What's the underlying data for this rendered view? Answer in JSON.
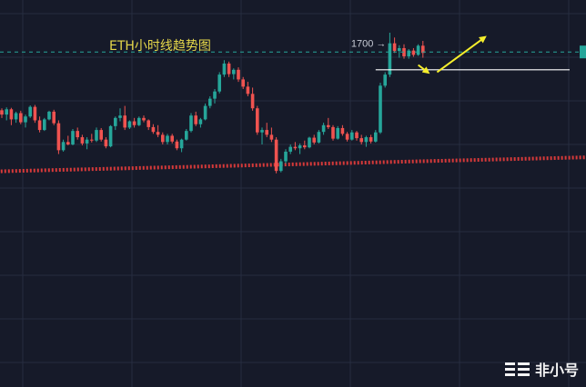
{
  "chart_data": {
    "type": "candlestick",
    "title": "ETH小时线趋势图",
    "grid": true,
    "price_marker": {
      "label": "1700 →",
      "value": 1700
    },
    "colors": {
      "background": "#161a29",
      "grid": "#262c3f",
      "up": "#26a69a",
      "down": "#ef5350",
      "title": "#e6d84a",
      "arrow": "#f5ee2c",
      "support": "#ffffff",
      "trendline": "#d83a3a",
      "current_price_line": "#26a69a"
    },
    "y_domain": [
      1290,
      1722
    ],
    "candles": [
      [
        1561,
        1565,
        1545,
        1552
      ],
      [
        1552,
        1567,
        1540,
        1563
      ],
      [
        1563,
        1566,
        1530,
        1542
      ],
      [
        1542,
        1558,
        1535,
        1555
      ],
      [
        1555,
        1560,
        1532,
        1536
      ],
      [
        1536,
        1552,
        1525,
        1548
      ],
      [
        1548,
        1571,
        1545,
        1568
      ],
      [
        1568,
        1572,
        1535,
        1540
      ],
      [
        1540,
        1548,
        1515,
        1520
      ],
      [
        1520,
        1545,
        1518,
        1542
      ],
      [
        1542,
        1560,
        1540,
        1558
      ],
      [
        1558,
        1562,
        1530,
        1534
      ],
      [
        1534,
        1540,
        1470,
        1478
      ],
      [
        1478,
        1500,
        1475,
        1495
      ],
      [
        1495,
        1508,
        1488,
        1490
      ],
      [
        1490,
        1522,
        1488,
        1518
      ],
      [
        1518,
        1525,
        1500,
        1505
      ],
      [
        1505,
        1510,
        1488,
        1492
      ],
      [
        1492,
        1505,
        1480,
        1500
      ],
      [
        1500,
        1512,
        1494,
        1498
      ],
      [
        1498,
        1525,
        1495,
        1520
      ],
      [
        1520,
        1524,
        1496,
        1500
      ],
      [
        1500,
        1505,
        1482,
        1486
      ],
      [
        1486,
        1530,
        1484,
        1528
      ],
      [
        1528,
        1548,
        1520,
        1545
      ],
      [
        1545,
        1565,
        1538,
        1550
      ],
      [
        1550,
        1570,
        1520,
        1525
      ],
      [
        1525,
        1540,
        1522,
        1538
      ],
      [
        1538,
        1545,
        1525,
        1530
      ],
      [
        1530,
        1548,
        1528,
        1545
      ],
      [
        1545,
        1550,
        1536,
        1540
      ],
      [
        1540,
        1542,
        1520,
        1526
      ],
      [
        1526,
        1532,
        1512,
        1516
      ],
      [
        1516,
        1530,
        1505,
        1510
      ],
      [
        1510,
        1515,
        1490,
        1495
      ],
      [
        1495,
        1512,
        1490,
        1508
      ],
      [
        1508,
        1512,
        1492,
        1496
      ],
      [
        1496,
        1500,
        1478,
        1482
      ],
      [
        1482,
        1502,
        1474,
        1500
      ],
      [
        1500,
        1522,
        1498,
        1518
      ],
      [
        1518,
        1555,
        1515,
        1550
      ],
      [
        1550,
        1558,
        1528,
        1532
      ],
      [
        1532,
        1545,
        1525,
        1542
      ],
      [
        1542,
        1575,
        1540,
        1570
      ],
      [
        1570,
        1590,
        1565,
        1585
      ],
      [
        1585,
        1605,
        1575,
        1600
      ],
      [
        1600,
        1640,
        1596,
        1635
      ],
      [
        1635,
        1665,
        1630,
        1658
      ],
      [
        1658,
        1662,
        1630,
        1636
      ],
      [
        1636,
        1648,
        1625,
        1645
      ],
      [
        1645,
        1650,
        1620,
        1625
      ],
      [
        1625,
        1630,
        1605,
        1610
      ],
      [
        1610,
        1620,
        1590,
        1595
      ],
      [
        1595,
        1608,
        1560,
        1565
      ],
      [
        1565,
        1570,
        1510,
        1515
      ],
      [
        1515,
        1525,
        1490,
        1520
      ],
      [
        1520,
        1535,
        1505,
        1510
      ],
      [
        1510,
        1525,
        1495,
        1500
      ],
      [
        1500,
        1505,
        1430,
        1435
      ],
      [
        1435,
        1460,
        1432,
        1455
      ],
      [
        1455,
        1480,
        1450,
        1475
      ],
      [
        1475,
        1490,
        1470,
        1485
      ],
      [
        1485,
        1495,
        1478,
        1482
      ],
      [
        1482,
        1492,
        1470,
        1488
      ],
      [
        1488,
        1498,
        1480,
        1484
      ],
      [
        1484,
        1506,
        1482,
        1504
      ],
      [
        1504,
        1510,
        1490,
        1494
      ],
      [
        1494,
        1520,
        1492,
        1516
      ],
      [
        1516,
        1535,
        1510,
        1530
      ],
      [
        1530,
        1545,
        1522,
        1526
      ],
      [
        1526,
        1530,
        1498,
        1502
      ],
      [
        1502,
        1528,
        1500,
        1524
      ],
      [
        1524,
        1530,
        1508,
        1512
      ],
      [
        1512,
        1516,
        1496,
        1500
      ],
      [
        1500,
        1520,
        1498,
        1515
      ],
      [
        1515,
        1518,
        1498,
        1503
      ],
      [
        1503,
        1510,
        1490,
        1495
      ],
      [
        1495,
        1508,
        1485,
        1505
      ],
      [
        1505,
        1510,
        1492,
        1496
      ],
      [
        1496,
        1520,
        1494,
        1515
      ],
      [
        1515,
        1618,
        1512,
        1612
      ],
      [
        1612,
        1640,
        1608,
        1635
      ],
      [
        1635,
        1722,
        1630,
        1700
      ],
      [
        1700,
        1712,
        1680,
        1684
      ],
      [
        1684,
        1696,
        1670,
        1690
      ],
      [
        1690,
        1698,
        1668,
        1673
      ],
      [
        1673,
        1688,
        1668,
        1685
      ],
      [
        1685,
        1690,
        1672,
        1676
      ],
      [
        1676,
        1698,
        1674,
        1695
      ],
      [
        1695,
        1705,
        1670,
        1680
      ]
    ],
    "horizontal_lines": [
      {
        "kind": "current-price",
        "value": 1682,
        "style": "dashed"
      },
      {
        "kind": "support",
        "value": 1645,
        "style": "solid"
      }
    ],
    "trendline": {
      "from": {
        "index": -1,
        "value": 1434
      },
      "to": {
        "index": 92,
        "value": 1470
      },
      "style": "dotted"
    },
    "arrows": [
      {
        "from": {
          "index": 88,
          "value": 1655
        },
        "to": {
          "index": 90,
          "value": 1640
        }
      },
      {
        "from": {
          "index": 92,
          "value": 1640
        },
        "to": {
          "index": 102,
          "value": 1712
        }
      }
    ],
    "watermark": "非小号"
  }
}
